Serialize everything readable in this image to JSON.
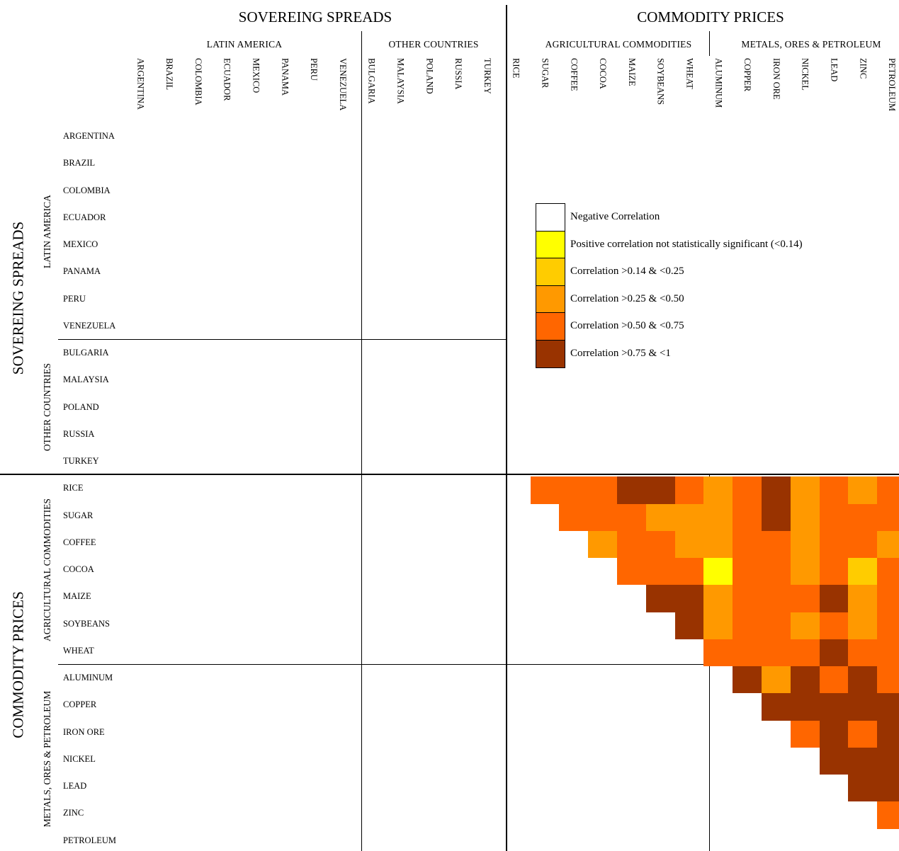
{
  "headers": {
    "top_left": "SOVEREING SPREADS",
    "top_right": "COMMODITY PRICES",
    "left_top": "SOVEREING SPREADS",
    "left_bottom": "COMMODITY PRICES"
  },
  "subheaders": {
    "latin_america": "LATIN AMERICA",
    "other_countries": "OTHER COUNTRIES",
    "agricultural": "AGRICULTURAL COMMODITIES",
    "metals": "METALS, ORES & PETROLEUM"
  },
  "legend": [
    {
      "label": "Negative Correlation",
      "color": "#ffffff"
    },
    {
      "label": "Positive correlation not statistically significant (<0.14)",
      "color": "#ffff00"
    },
    {
      "label": "Correlation >0.14 & <0.25",
      "color": "#ffcc00"
    },
    {
      "label": "Correlation >0.25 & <0.50",
      "color": "#ff9900"
    },
    {
      "label": "Correlation >0.50 & <0.75",
      "color": "#ff6600"
    },
    {
      "label": "Correlation >0.75 & <1",
      "color": "#993300"
    }
  ],
  "chart_data": {
    "type": "heatmap",
    "labels": [
      "ARGENTINA",
      "BRAZIL",
      "COLOMBIA",
      "ECUADOR",
      "MEXICO",
      "PANAMA",
      "PERU",
      "VENEZUELA",
      "BULGARIA",
      "MALAYSIA",
      "POLAND",
      "RUSSIA",
      "TURKEY",
      "RICE",
      "SUGAR",
      "COFFEE",
      "COCOA",
      "MAIZE",
      "SOYBEANS",
      "WHEAT",
      "ALUMINUM",
      "COPPER",
      "IRON ORE",
      "NICKEL",
      "LEAD",
      "ZINC",
      "PETROLEUM"
    ],
    "commodity_labels": [
      "RICE",
      "SUGAR",
      "COFFEE",
      "COCOA",
      "MAIZE",
      "SOYBEANS",
      "WHEAT",
      "ALUMINUM",
      "COPPER",
      "IRON ORE",
      "NICKEL",
      "LEAD",
      "ZINC",
      "PETROLEUM"
    ],
    "category_scale": [
      "Negative Correlation",
      "Positive correlation not statistically significant (<0.14)",
      "Correlation >0.14 & <0.25",
      "Correlation >0.25 & <0.50",
      "Correlation >0.50 & <0.75",
      "Correlation >0.75 & <1"
    ],
    "commodity_matrix": [
      [
        null,
        4,
        4,
        4,
        5,
        5,
        4,
        3,
        4,
        5,
        3,
        4,
        3,
        4
      ],
      [
        null,
        null,
        4,
        4,
        4,
        3,
        3,
        3,
        4,
        5,
        3,
        4,
        4,
        4
      ],
      [
        null,
        null,
        null,
        3,
        4,
        4,
        3,
        3,
        4,
        4,
        3,
        4,
        4,
        3
      ],
      [
        null,
        null,
        null,
        null,
        4,
        4,
        4,
        1,
        4,
        4,
        3,
        4,
        2,
        4
      ],
      [
        null,
        null,
        null,
        null,
        null,
        5,
        5,
        3,
        4,
        4,
        4,
        5,
        3,
        4
      ],
      [
        null,
        null,
        null,
        null,
        null,
        null,
        5,
        3,
        4,
        4,
        3,
        4,
        3,
        4
      ],
      [
        null,
        null,
        null,
        null,
        null,
        null,
        null,
        4,
        4,
        4,
        4,
        5,
        4,
        4
      ],
      [
        null,
        null,
        null,
        null,
        null,
        null,
        null,
        null,
        5,
        3,
        5,
        4,
        5,
        4
      ],
      [
        null,
        null,
        null,
        null,
        null,
        null,
        null,
        null,
        null,
        5,
        5,
        5,
        5,
        5
      ],
      [
        null,
        null,
        null,
        null,
        null,
        null,
        null,
        null,
        null,
        null,
        4,
        5,
        4,
        5
      ],
      [
        null,
        null,
        null,
        null,
        null,
        null,
        null,
        null,
        null,
        null,
        null,
        5,
        5,
        5
      ],
      [
        null,
        null,
        null,
        null,
        null,
        null,
        null,
        null,
        null,
        null,
        null,
        null,
        5,
        5
      ],
      [
        null,
        null,
        null,
        null,
        null,
        null,
        null,
        null,
        null,
        null,
        null,
        null,
        null,
        4
      ],
      [
        null,
        null,
        null,
        null,
        null,
        null,
        null,
        null,
        null,
        null,
        null,
        null,
        null,
        null
      ]
    ]
  }
}
